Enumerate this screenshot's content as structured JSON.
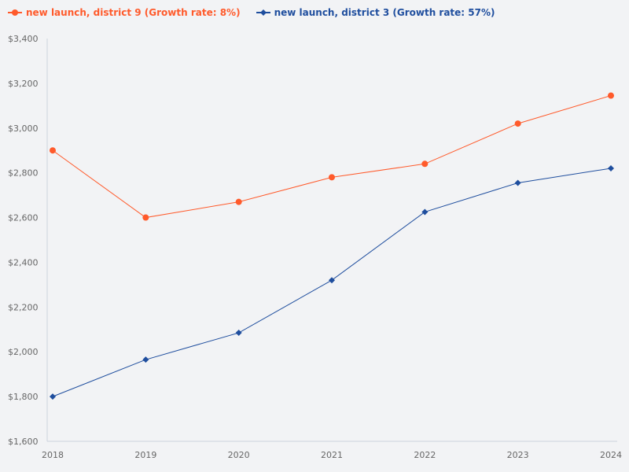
{
  "chart_data": {
    "type": "line",
    "title": "",
    "xlabel": "",
    "ylabel": "",
    "categories": [
      "2018",
      "2019",
      "2020",
      "2021",
      "2022",
      "2023",
      "2024"
    ],
    "ylim": [
      1600,
      3400
    ],
    "yticks": [
      1600,
      1800,
      2000,
      2200,
      2400,
      2600,
      2800,
      3000,
      3200,
      3400
    ],
    "ytick_labels": [
      "$1,600",
      "$1,800",
      "$2,000",
      "$2,200",
      "$2,400",
      "$2,600",
      "$2,800",
      "$3,000",
      "$3,200",
      "$3,400"
    ],
    "grid": false,
    "legend_position": "top-left",
    "series": [
      {
        "name": "new launch, district 9 (Growth rate: 8%)",
        "color": "#ff5a2b",
        "marker": "circle",
        "values": [
          2900,
          2600,
          2670,
          2780,
          2840,
          3020,
          3145
        ]
      },
      {
        "name": "new launch, district 3 (Growth rate: 57%)",
        "color": "#1f4e9e",
        "marker": "diamond",
        "values": [
          1800,
          1965,
          2085,
          2320,
          2625,
          2755,
          2820
        ]
      }
    ]
  }
}
